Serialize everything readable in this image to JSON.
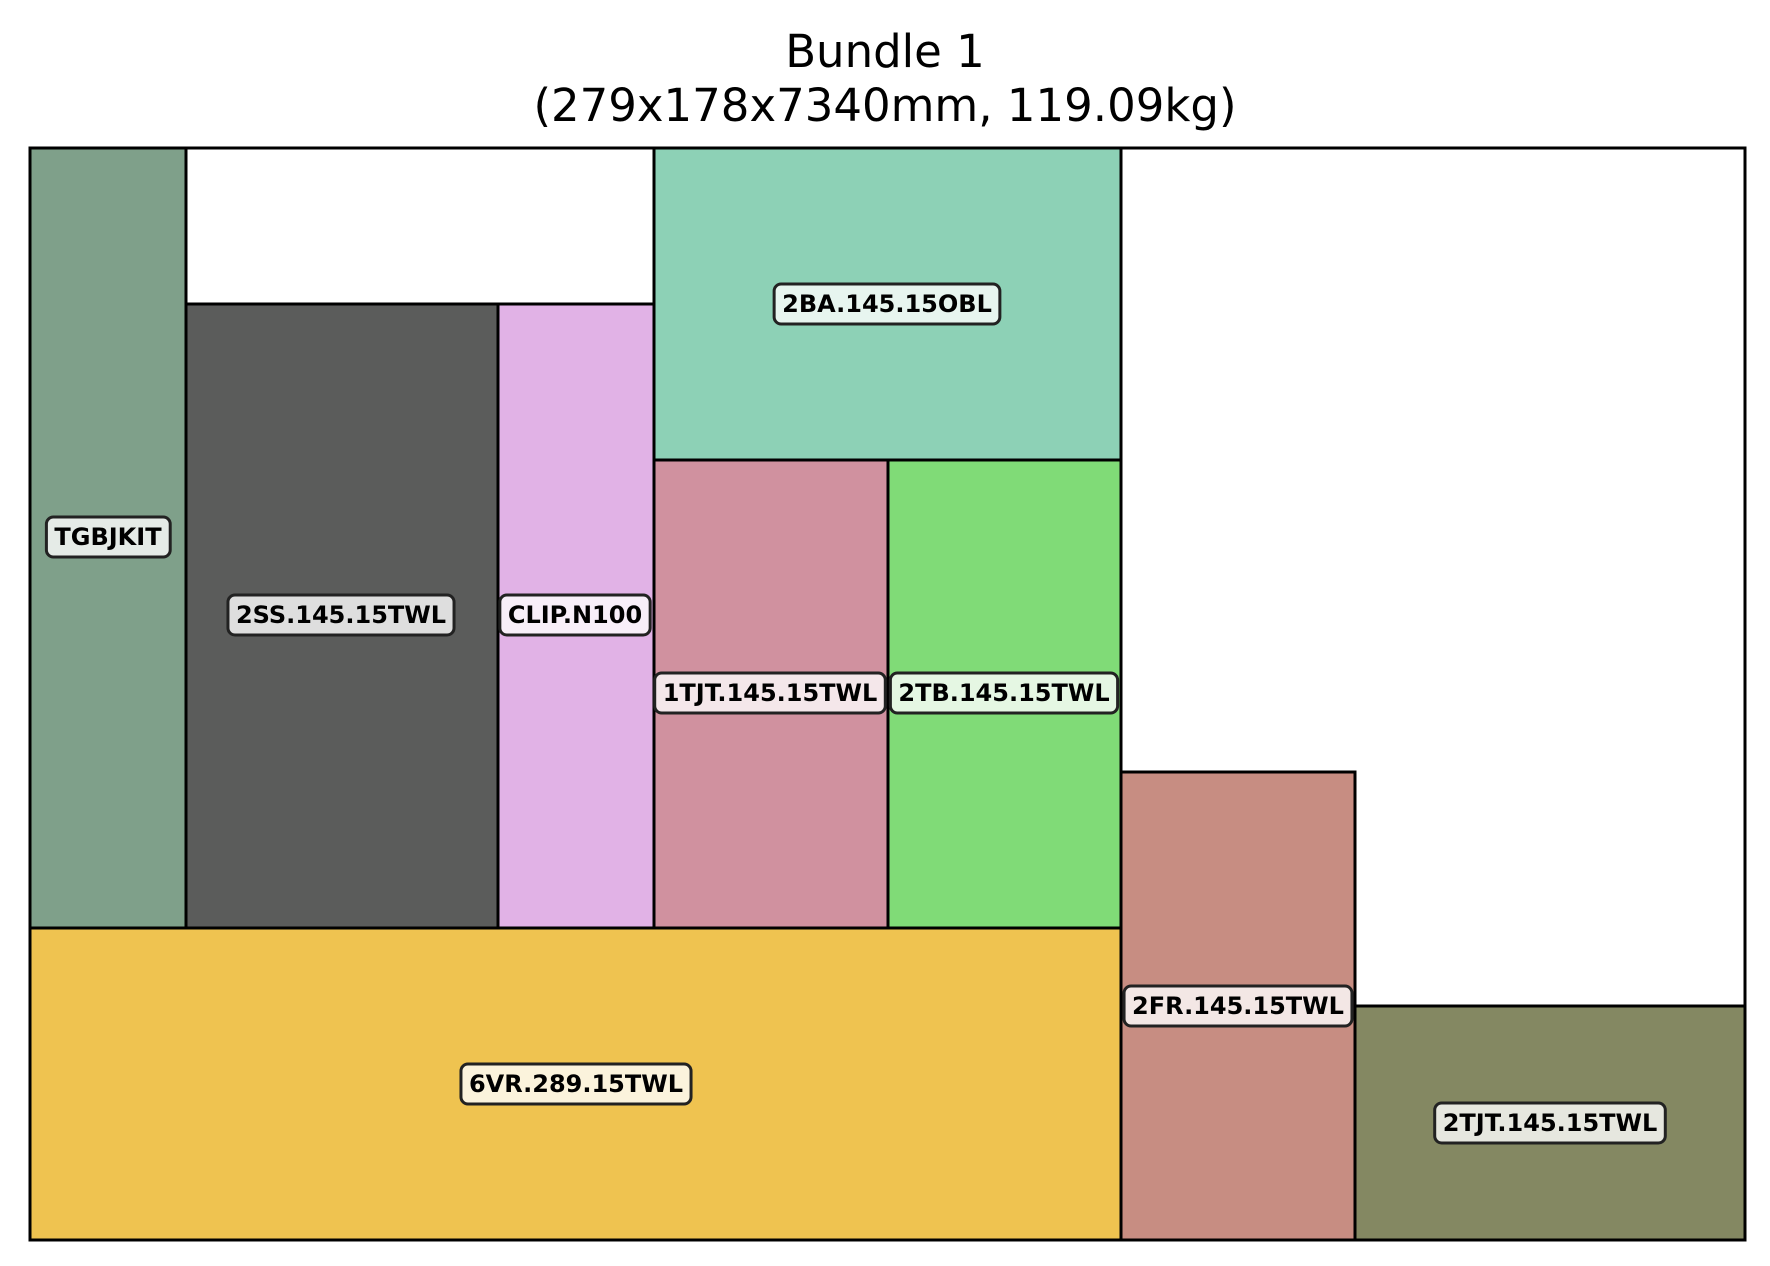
{
  "title": {
    "line1": "Bundle 1",
    "line2": "(279x178x7340mm, 119.09kg)"
  },
  "pieces": [
    {
      "id": "tgbjkit",
      "label": "TGBJKIT",
      "color": "#7fa08a",
      "label_bg": "#e5ebe7"
    },
    {
      "id": "2ss",
      "label": "2SS.145.15TWL",
      "color": "#5b5c5b",
      "label_bg": "#dedede"
    },
    {
      "id": "clip",
      "label": "CLIP.N100",
      "color": "#e1b2e6",
      "label_bg": "#f8eff9"
    },
    {
      "id": "2ba",
      "label": "2BA.145.15OBL",
      "color": "#8dd1b6",
      "label_bg": "#e7f5ef"
    },
    {
      "id": "1tjt",
      "label": "1TJT.145.15TWL",
      "color": "#d0919f",
      "label_bg": "#f4e7ea"
    },
    {
      "id": "2tb",
      "label": "2TB.145.15TWL",
      "color": "#80db77",
      "label_bg": "#e5f7e3"
    },
    {
      "id": "6vr",
      "label": "6VR.289.15TWL",
      "color": "#efc350",
      "label_bg": "#fbf3dc"
    },
    {
      "id": "2fr",
      "label": "2FR.145.15TWL",
      "color": "#c78d82",
      "label_bg": "#f3e7e5"
    },
    {
      "id": "2tjt",
      "label": "2TJT.145.15TWL",
      "color": "#848862",
      "label_bg": "#e6e7df"
    }
  ]
}
